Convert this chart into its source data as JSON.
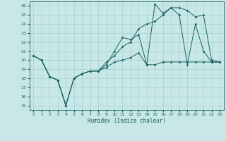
{
  "xlabel": "Humidex (Indice chaleur)",
  "bg_color": "#c8e8e8",
  "grid_color": "#a8d0d0",
  "line_color": "#1a6060",
  "xlim": [
    -0.5,
    23.5
  ],
  "ylim": [
    14.5,
    26.5
  ],
  "yticks": [
    15,
    16,
    17,
    18,
    19,
    20,
    21,
    22,
    23,
    24,
    25,
    26
  ],
  "xticks": [
    0,
    1,
    2,
    3,
    4,
    5,
    6,
    7,
    8,
    9,
    10,
    11,
    12,
    13,
    14,
    15,
    16,
    17,
    18,
    19,
    20,
    21,
    22,
    23
  ],
  "line1_x": [
    0,
    1,
    2,
    3,
    4,
    5,
    6,
    7,
    8,
    9,
    10,
    11,
    12,
    13,
    14,
    15,
    16,
    17,
    18,
    19,
    20,
    21,
    22,
    23
  ],
  "line1_y": [
    20.5,
    20.0,
    18.2,
    17.8,
    15.0,
    18.0,
    18.5,
    18.8,
    18.8,
    19.5,
    21.0,
    22.5,
    22.3,
    22.8,
    19.5,
    26.2,
    25.2,
    25.8,
    25.0,
    19.5,
    24.0,
    21.0,
    19.8,
    19.8
  ],
  "line2_x": [
    0,
    1,
    2,
    3,
    4,
    5,
    6,
    7,
    8,
    9,
    10,
    11,
    12,
    13,
    14,
    15,
    16,
    17,
    18,
    19,
    20,
    21,
    22,
    23
  ],
  "line2_y": [
    20.5,
    20.0,
    18.2,
    17.8,
    15.0,
    18.0,
    18.5,
    18.8,
    18.8,
    19.8,
    20.5,
    21.5,
    22.0,
    23.5,
    24.0,
    24.3,
    25.0,
    25.8,
    25.8,
    25.5,
    24.8,
    25.0,
    20.0,
    19.8
  ],
  "line3_x": [
    0,
    1,
    2,
    3,
    4,
    5,
    6,
    7,
    8,
    9,
    10,
    11,
    12,
    13,
    14,
    15,
    16,
    17,
    18,
    19,
    20,
    21,
    22,
    23
  ],
  "line3_y": [
    20.5,
    20.0,
    18.2,
    17.8,
    15.0,
    18.0,
    18.5,
    18.8,
    18.8,
    19.2,
    19.8,
    20.0,
    20.3,
    20.8,
    19.5,
    19.5,
    19.8,
    19.8,
    19.8,
    19.8,
    19.8,
    19.8,
    19.8,
    19.8
  ]
}
